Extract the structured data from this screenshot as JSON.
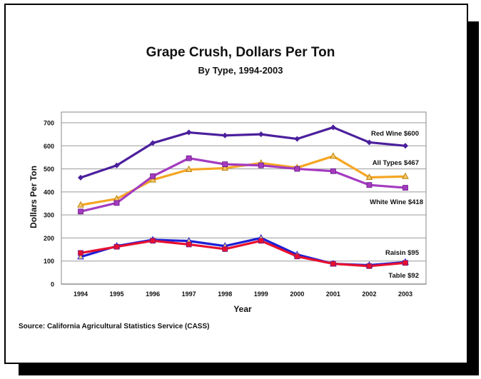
{
  "chart_data": {
    "type": "line",
    "title": "Grape Crush, Dollars Per Ton",
    "subtitle": "By Type, 1994-2003",
    "xlabel": "Year",
    "ylabel": "Dollars Per Ton",
    "ylim": [
      0,
      700
    ],
    "yticks": [
      0,
      100,
      200,
      300,
      400,
      500,
      600,
      700
    ],
    "x": [
      "1994",
      "1995",
      "1996",
      "1997",
      "1998",
      "1999",
      "2000",
      "2001",
      "2002",
      "2003"
    ],
    "grid": true,
    "series": [
      {
        "name": "Red Wine",
        "end_label": "Red Wine $600",
        "color": "#4b1f9c",
        "marker": "diamond",
        "values": [
          462,
          515,
          612,
          658,
          645,
          650,
          630,
          680,
          615,
          600
        ]
      },
      {
        "name": "All Types",
        "end_label": "All Types $467",
        "color": "#f5a623",
        "marker": "triangle",
        "values": [
          343,
          370,
          452,
          497,
          503,
          525,
          505,
          555,
          463,
          467
        ]
      },
      {
        "name": "White Wine",
        "end_label": "White Wine $418",
        "color": "#a43bc0",
        "marker": "square",
        "values": [
          315,
          352,
          468,
          546,
          520,
          515,
          500,
          490,
          430,
          418
        ]
      },
      {
        "name": "Raisin",
        "end_label": "Raisin $95",
        "color": "#1c1ed6",
        "marker": "triangle",
        "values": [
          118,
          165,
          192,
          187,
          165,
          200,
          128,
          88,
          82,
          95
        ]
      },
      {
        "name": "Table",
        "end_label": "Table $92",
        "color": "#e8102e",
        "marker": "square",
        "values": [
          135,
          162,
          188,
          172,
          152,
          188,
          120,
          88,
          78,
          92
        ]
      }
    ]
  },
  "source": "Source:  California Agricultural Statistics Service (CASS)"
}
